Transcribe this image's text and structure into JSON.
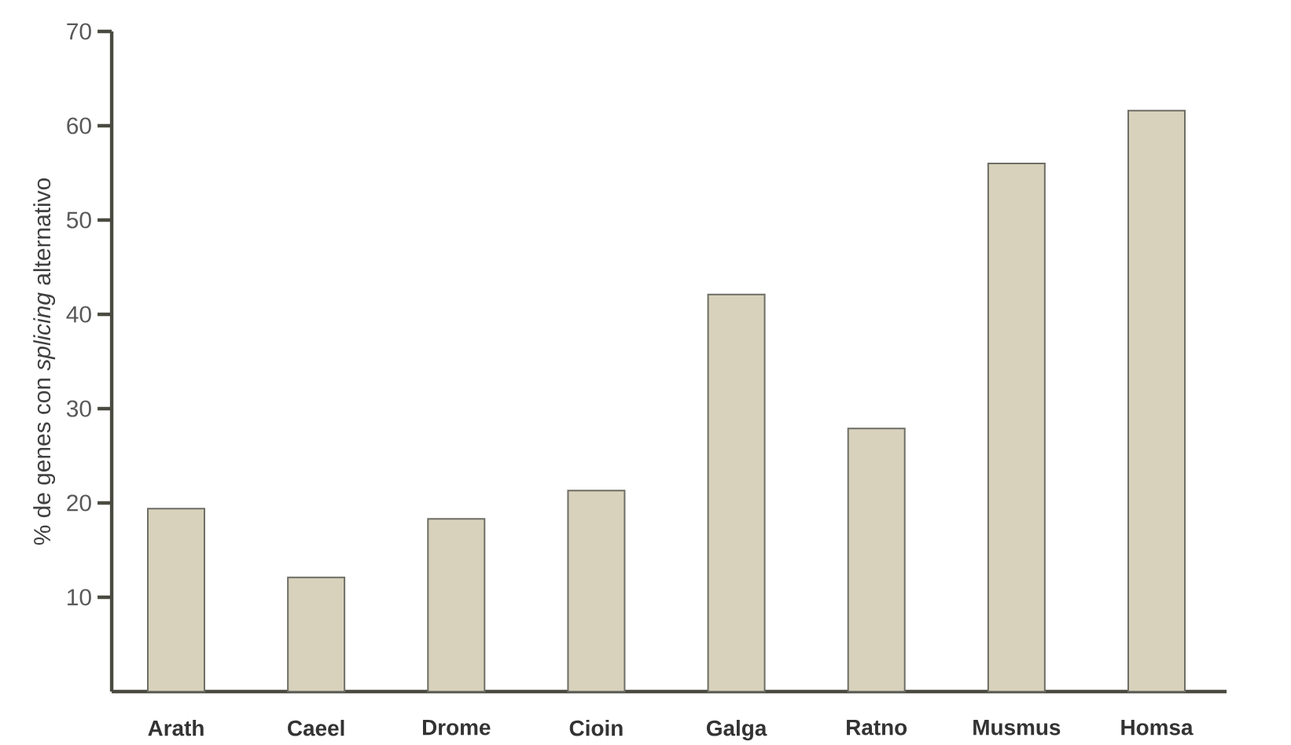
{
  "chart_data": {
    "type": "bar",
    "ylabel": "% de genes con *splicing* alternativo",
    "categories": [
      "Arath",
      "Caeel",
      "Drome",
      "Cioin",
      "Galga",
      "Ratno",
      "Musmus",
      "Homsa"
    ],
    "values": [
      19.4,
      12.1,
      18.3,
      21.3,
      42.1,
      27.9,
      56,
      61.6
    ],
    "color": "#d8d2bc",
    "ylim": [
      0,
      70
    ],
    "yticks": [
      10,
      20,
      30,
      40,
      50,
      60,
      70
    ],
    "grid": false
  }
}
